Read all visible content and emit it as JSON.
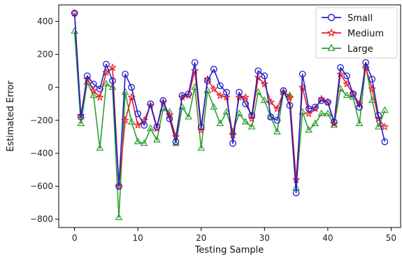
{
  "chart_data": {
    "type": "line",
    "title": "",
    "xlabel": "Testing Sample",
    "ylabel": "Estimated Error",
    "xlim": [
      -2.5,
      51.5
    ],
    "ylim": [
      -850,
      500
    ],
    "xticks": [
      0,
      10,
      20,
      30,
      40,
      50
    ],
    "yticks": [
      -800,
      -600,
      -400,
      -200,
      0,
      200,
      400
    ],
    "grid": false,
    "legend_position": "top-right",
    "x": [
      0,
      1,
      2,
      3,
      4,
      5,
      6,
      7,
      8,
      9,
      10,
      11,
      12,
      13,
      14,
      15,
      16,
      17,
      18,
      19,
      20,
      21,
      22,
      23,
      24,
      25,
      26,
      27,
      28,
      29,
      30,
      31,
      32,
      33,
      34,
      35,
      36,
      37,
      38,
      39,
      40,
      41,
      42,
      43,
      44,
      45,
      46,
      47,
      48,
      49
    ],
    "series": [
      {
        "name": "Small",
        "color": "#1f1fcc",
        "marker": "circle",
        "values": [
          450,
          -180,
          70,
          20,
          -10,
          140,
          40,
          -600,
          80,
          0,
          -160,
          -230,
          -100,
          -240,
          -80,
          -190,
          -330,
          -50,
          -40,
          150,
          -240,
          40,
          110,
          10,
          -30,
          -340,
          -30,
          -100,
          -170,
          100,
          70,
          -180,
          -200,
          -20,
          -110,
          -640,
          80,
          -130,
          -120,
          -80,
          -90,
          -210,
          120,
          70,
          -40,
          -120,
          150,
          50,
          -170,
          -330
        ]
      },
      {
        "name": "Medium",
        "color": "#e8191f",
        "marker": "star",
        "values": [
          450,
          -170,
          50,
          -20,
          -60,
          90,
          120,
          -600,
          -200,
          -60,
          -230,
          -200,
          -110,
          -250,
          -90,
          -170,
          -300,
          -60,
          -50,
          100,
          -260,
          50,
          -10,
          -50,
          -60,
          -290,
          -60,
          -60,
          -190,
          60,
          20,
          -90,
          -130,
          -30,
          -60,
          -560,
          0,
          -160,
          -130,
          -70,
          -90,
          -220,
          80,
          20,
          -40,
          -100,
          120,
          -10,
          -190,
          -240
        ]
      },
      {
        "name": "Large",
        "color": "#2ca02c",
        "marker": "triangle",
        "values": [
          340,
          -220,
          30,
          -50,
          -370,
          20,
          0,
          -790,
          -30,
          -210,
          -330,
          -340,
          -250,
          -320,
          -130,
          -150,
          -340,
          -120,
          -180,
          0,
          -370,
          -20,
          -120,
          -220,
          -150,
          -270,
          -160,
          -210,
          -240,
          -30,
          -80,
          -180,
          -270,
          -30,
          -50,
          -610,
          -150,
          -260,
          -220,
          -160,
          -160,
          -230,
          -10,
          -50,
          -60,
          -220,
          130,
          -80,
          -240,
          -140
        ]
      }
    ]
  }
}
